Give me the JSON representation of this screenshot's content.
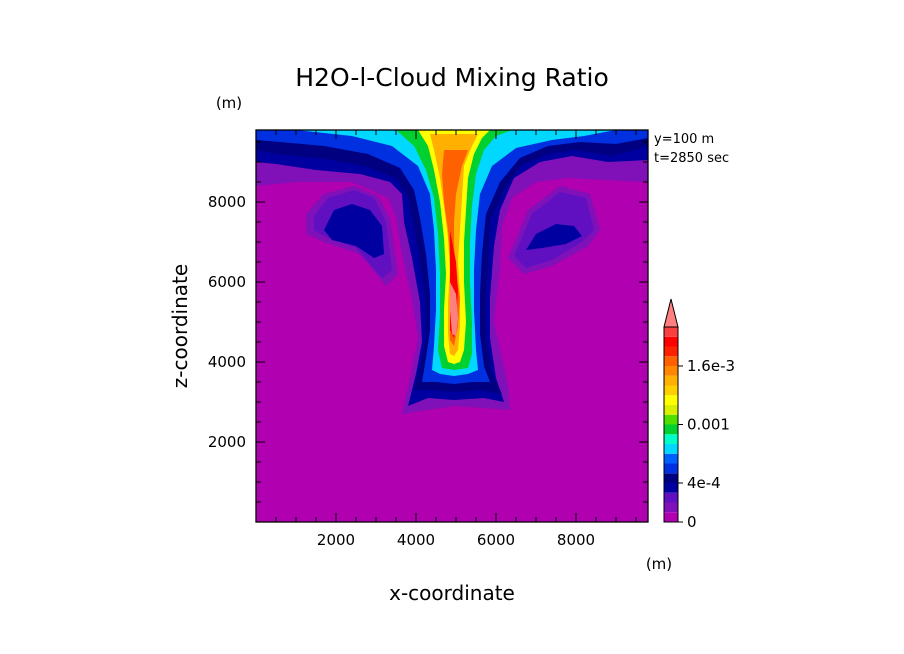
{
  "chart_data": {
    "type": "heatmap",
    "title": "H2O-l-Cloud Mixing Ratio",
    "xlabel": "x-coordinate",
    "ylabel": "z-coordinate",
    "x_unit": "(m)",
    "y_unit": "(m)",
    "annotations": [
      "y=100 m",
      "t=2850 sec"
    ],
    "xlim": [
      0,
      9800
    ],
    "ylim": [
      0,
      9800
    ],
    "x_ticks": [
      2000,
      4000,
      6000,
      8000
    ],
    "y_ticks": [
      2000,
      4000,
      6000,
      8000
    ],
    "legend_placement": "right",
    "colorbar": {
      "levels": [
        0,
        0.0001,
        0.0002,
        0.0003,
        0.0004,
        0.0005,
        0.0006,
        0.0007,
        0.0008,
        0.0009,
        0.001,
        0.0011,
        0.0012,
        0.0013,
        0.0014,
        0.0015,
        0.0016,
        0.0017,
        0.0018,
        0.0019,
        0.002
      ],
      "colors": [
        "#b000b0",
        "#8010b8",
        "#6010c0",
        "#0000a0",
        "#000080",
        "#0030e0",
        "#0060ff",
        "#00d8ff",
        "#00ffc8",
        "#00d030",
        "#50e000",
        "#d8f000",
        "#ffff00",
        "#ffd000",
        "#ffb000",
        "#ff8800",
        "#ff6000",
        "#ff2000",
        "#ff0000",
        "#f84040",
        "#ff8080"
      ],
      "tick_labels": [
        {
          "value": 0,
          "label": "0"
        },
        {
          "value": 0.0004,
          "label": "4e-4"
        },
        {
          "value": 0.001,
          "label": "0.001"
        },
        {
          "value": 0.0016,
          "label": "1.6e-3"
        }
      ]
    },
    "regions": [
      {
        "level": 1,
        "points": [
          [
            0,
            9800
          ],
          [
            9800,
            9800
          ],
          [
            9800,
            8500
          ],
          [
            8700,
            8550
          ],
          [
            7800,
            8600
          ],
          [
            7000,
            8500
          ],
          [
            6400,
            8100
          ],
          [
            6150,
            7400
          ],
          [
            6100,
            6400
          ],
          [
            5950,
            5000
          ],
          [
            6300,
            3400
          ],
          [
            6350,
            2800
          ],
          [
            4950,
            2900
          ],
          [
            3650,
            2700
          ],
          [
            3850,
            3600
          ],
          [
            4050,
            4600
          ],
          [
            3900,
            5600
          ],
          [
            3650,
            6700
          ],
          [
            3500,
            7600
          ],
          [
            3300,
            8100
          ],
          [
            2400,
            8500
          ],
          [
            1000,
            8500
          ],
          [
            0,
            8400
          ]
        ]
      },
      {
        "level": 1,
        "points": [
          [
            1250,
            7700
          ],
          [
            1700,
            8200
          ],
          [
            2450,
            8400
          ],
          [
            3050,
            8150
          ],
          [
            3350,
            7600
          ],
          [
            3550,
            6200
          ],
          [
            3250,
            5900
          ],
          [
            2600,
            6700
          ],
          [
            1700,
            7000
          ],
          [
            1250,
            7200
          ]
        ]
      },
      {
        "level": 1,
        "points": [
          [
            6300,
            6600
          ],
          [
            6800,
            7800
          ],
          [
            7600,
            8400
          ],
          [
            8350,
            8200
          ],
          [
            8600,
            7300
          ],
          [
            8300,
            6900
          ],
          [
            7400,
            6400
          ],
          [
            6700,
            6200
          ]
        ]
      },
      {
        "level": 2,
        "points": [
          [
            1450,
            7650
          ],
          [
            1800,
            8100
          ],
          [
            2450,
            8300
          ],
          [
            2950,
            8100
          ],
          [
            3250,
            7500
          ],
          [
            3400,
            6300
          ],
          [
            3150,
            6100
          ],
          [
            2500,
            6850
          ],
          [
            1700,
            7150
          ],
          [
            1450,
            7300
          ]
        ]
      },
      {
        "level": 2,
        "points": [
          [
            6450,
            6650
          ],
          [
            6900,
            7700
          ],
          [
            7600,
            8250
          ],
          [
            8250,
            8100
          ],
          [
            8450,
            7300
          ],
          [
            8150,
            7000
          ],
          [
            7400,
            6550
          ],
          [
            6750,
            6350
          ]
        ]
      },
      {
        "level": 3,
        "points": [
          [
            0,
            9800
          ],
          [
            9800,
            9800
          ],
          [
            9800,
            9050
          ],
          [
            8800,
            9000
          ],
          [
            7900,
            9150
          ],
          [
            7100,
            9000
          ],
          [
            6450,
            8600
          ],
          [
            6100,
            7800
          ],
          [
            5950,
            6900
          ],
          [
            5850,
            5600
          ],
          [
            5850,
            4600
          ],
          [
            6000,
            3600
          ],
          [
            6200,
            3000
          ],
          [
            5700,
            3100
          ],
          [
            4950,
            3050
          ],
          [
            4300,
            3100
          ],
          [
            3800,
            2900
          ],
          [
            4000,
            3700
          ],
          [
            4150,
            4500
          ],
          [
            4100,
            5500
          ],
          [
            3900,
            6600
          ],
          [
            3700,
            7500
          ],
          [
            3650,
            8200
          ],
          [
            3350,
            8500
          ],
          [
            2600,
            8700
          ],
          [
            1500,
            8800
          ],
          [
            500,
            8950
          ],
          [
            0,
            9000
          ]
        ]
      },
      {
        "level": 3,
        "points": [
          [
            1700,
            7300
          ],
          [
            1950,
            7800
          ],
          [
            2400,
            7950
          ],
          [
            2850,
            7800
          ],
          [
            3150,
            7400
          ],
          [
            3200,
            6700
          ],
          [
            2950,
            6600
          ],
          [
            2500,
            6900
          ],
          [
            1900,
            7050
          ]
        ]
      },
      {
        "level": 3,
        "points": [
          [
            6750,
            6800
          ],
          [
            7000,
            7200
          ],
          [
            7500,
            7450
          ],
          [
            7950,
            7400
          ],
          [
            8150,
            7150
          ],
          [
            7750,
            6950
          ],
          [
            7150,
            6850
          ]
        ]
      },
      {
        "level": 4,
        "points": [
          [
            0,
            9800
          ],
          [
            9800,
            9800
          ],
          [
            9800,
            9400
          ],
          [
            8900,
            9150
          ],
          [
            8000,
            9300
          ],
          [
            7300,
            9200
          ],
          [
            6600,
            8900
          ],
          [
            6200,
            8300
          ],
          [
            5850,
            7500
          ],
          [
            5800,
            6500
          ],
          [
            5750,
            5600
          ],
          [
            5750,
            4600
          ],
          [
            5900,
            3700
          ],
          [
            6150,
            3200
          ],
          [
            5600,
            3300
          ],
          [
            4950,
            3250
          ],
          [
            4350,
            3300
          ],
          [
            3950,
            3300
          ],
          [
            4100,
            3900
          ],
          [
            4250,
            4600
          ],
          [
            4250,
            5500
          ],
          [
            4100,
            6500
          ],
          [
            3950,
            7400
          ],
          [
            3800,
            8100
          ],
          [
            3500,
            8600
          ],
          [
            2700,
            8900
          ],
          [
            1600,
            9100
          ],
          [
            500,
            9200
          ],
          [
            0,
            9300
          ]
        ]
      },
      {
        "level": 5,
        "points": [
          [
            0,
            9800
          ],
          [
            9800,
            9800
          ],
          [
            9800,
            9600
          ],
          [
            9000,
            9450
          ],
          [
            8100,
            9500
          ],
          [
            7300,
            9400
          ],
          [
            6600,
            9100
          ],
          [
            6100,
            8500
          ],
          [
            5750,
            7700
          ],
          [
            5650,
            6700
          ],
          [
            5600,
            5700
          ],
          [
            5600,
            4700
          ],
          [
            5700,
            3900
          ],
          [
            5850,
            3500
          ],
          [
            5400,
            3500
          ],
          [
            4950,
            3450
          ],
          [
            4500,
            3500
          ],
          [
            4150,
            3500
          ],
          [
            4250,
            4100
          ],
          [
            4350,
            4800
          ],
          [
            4350,
            5700
          ],
          [
            4250,
            6700
          ],
          [
            4100,
            7600
          ],
          [
            3950,
            8300
          ],
          [
            3600,
            8850
          ],
          [
            2800,
            9200
          ],
          [
            1700,
            9400
          ],
          [
            600,
            9500
          ],
          [
            0,
            9550
          ]
        ]
      },
      {
        "level": 7,
        "points": [
          [
            1000,
            9800
          ],
          [
            9000,
            9800
          ],
          [
            8200,
            9650
          ],
          [
            7400,
            9550
          ],
          [
            6500,
            9350
          ],
          [
            5900,
            8900
          ],
          [
            5600,
            8200
          ],
          [
            5500,
            7300
          ],
          [
            5450,
            6300
          ],
          [
            5450,
            5300
          ],
          [
            5500,
            4300
          ],
          [
            5550,
            3800
          ],
          [
            5300,
            3700
          ],
          [
            4950,
            3650
          ],
          [
            4600,
            3700
          ],
          [
            4400,
            3800
          ],
          [
            4450,
            4400
          ],
          [
            4500,
            5300
          ],
          [
            4500,
            6300
          ],
          [
            4450,
            7300
          ],
          [
            4350,
            8200
          ],
          [
            4050,
            8900
          ],
          [
            3400,
            9400
          ],
          [
            2400,
            9650
          ]
        ]
      },
      {
        "level": 9,
        "points": [
          [
            3500,
            9800
          ],
          [
            6400,
            9800
          ],
          [
            6000,
            9650
          ],
          [
            5700,
            9300
          ],
          [
            5500,
            8700
          ],
          [
            5400,
            7900
          ],
          [
            5350,
            7000
          ],
          [
            5350,
            6000
          ],
          [
            5400,
            5000
          ],
          [
            5400,
            4200
          ],
          [
            5300,
            3850
          ],
          [
            4950,
            3800
          ],
          [
            4650,
            3850
          ],
          [
            4550,
            4300
          ],
          [
            4600,
            5200
          ],
          [
            4600,
            6200
          ],
          [
            4550,
            7200
          ],
          [
            4450,
            8100
          ],
          [
            4250,
            8800
          ],
          [
            3950,
            9400
          ]
        ]
      },
      {
        "level": 12,
        "points": [
          [
            4050,
            9800
          ],
          [
            5850,
            9800
          ],
          [
            5650,
            9600
          ],
          [
            5450,
            9200
          ],
          [
            5300,
            8600
          ],
          [
            5250,
            7800
          ],
          [
            5200,
            7000
          ],
          [
            5200,
            6000
          ],
          [
            5250,
            5000
          ],
          [
            5200,
            4300
          ],
          [
            5100,
            4000
          ],
          [
            4950,
            3950
          ],
          [
            4800,
            4000
          ],
          [
            4700,
            4400
          ],
          [
            4700,
            5300
          ],
          [
            4750,
            6200
          ],
          [
            4700,
            7100
          ],
          [
            4600,
            8000
          ],
          [
            4450,
            8800
          ],
          [
            4300,
            9400
          ]
        ]
      },
      {
        "level": 14,
        "points": [
          [
            4350,
            9700
          ],
          [
            5550,
            9700
          ],
          [
            5400,
            9400
          ],
          [
            5200,
            8900
          ],
          [
            5150,
            8100
          ],
          [
            5100,
            7300
          ],
          [
            5050,
            6500
          ],
          [
            5100,
            5700
          ],
          [
            5100,
            4900
          ],
          [
            5050,
            4300
          ],
          [
            4950,
            4150
          ],
          [
            4850,
            4200
          ],
          [
            4800,
            4700
          ],
          [
            4800,
            5500
          ],
          [
            4850,
            6300
          ],
          [
            4800,
            7100
          ],
          [
            4700,
            7900
          ],
          [
            4600,
            8600
          ],
          [
            4450,
            9300
          ]
        ]
      },
      {
        "level": 16,
        "points": [
          [
            4700,
            9300
          ],
          [
            5300,
            9300
          ],
          [
            5150,
            8900
          ],
          [
            5000,
            8200
          ],
          [
            4950,
            7500
          ],
          [
            4950,
            6900
          ],
          [
            5000,
            6200
          ],
          [
            5100,
            5600
          ],
          [
            5050,
            4900
          ],
          [
            4950,
            4400
          ],
          [
            4850,
            4550
          ],
          [
            4850,
            5200
          ],
          [
            4900,
            5900
          ],
          [
            4850,
            6600
          ],
          [
            4800,
            7300
          ],
          [
            4700,
            8000
          ],
          [
            4650,
            8700
          ]
        ]
      },
      {
        "level": 18,
        "points": [
          [
            4850,
            7300
          ],
          [
            5000,
            6500
          ],
          [
            5050,
            5800
          ],
          [
            5000,
            5000
          ],
          [
            4950,
            4600
          ],
          [
            4850,
            4800
          ],
          [
            4850,
            5500
          ],
          [
            4850,
            6300
          ]
        ]
      },
      {
        "level": 20,
        "points": [
          [
            4850,
            6000
          ],
          [
            5000,
            5700
          ],
          [
            5050,
            5100
          ],
          [
            5000,
            4650
          ],
          [
            4900,
            4700
          ],
          [
            4850,
            5300
          ]
        ]
      }
    ]
  }
}
